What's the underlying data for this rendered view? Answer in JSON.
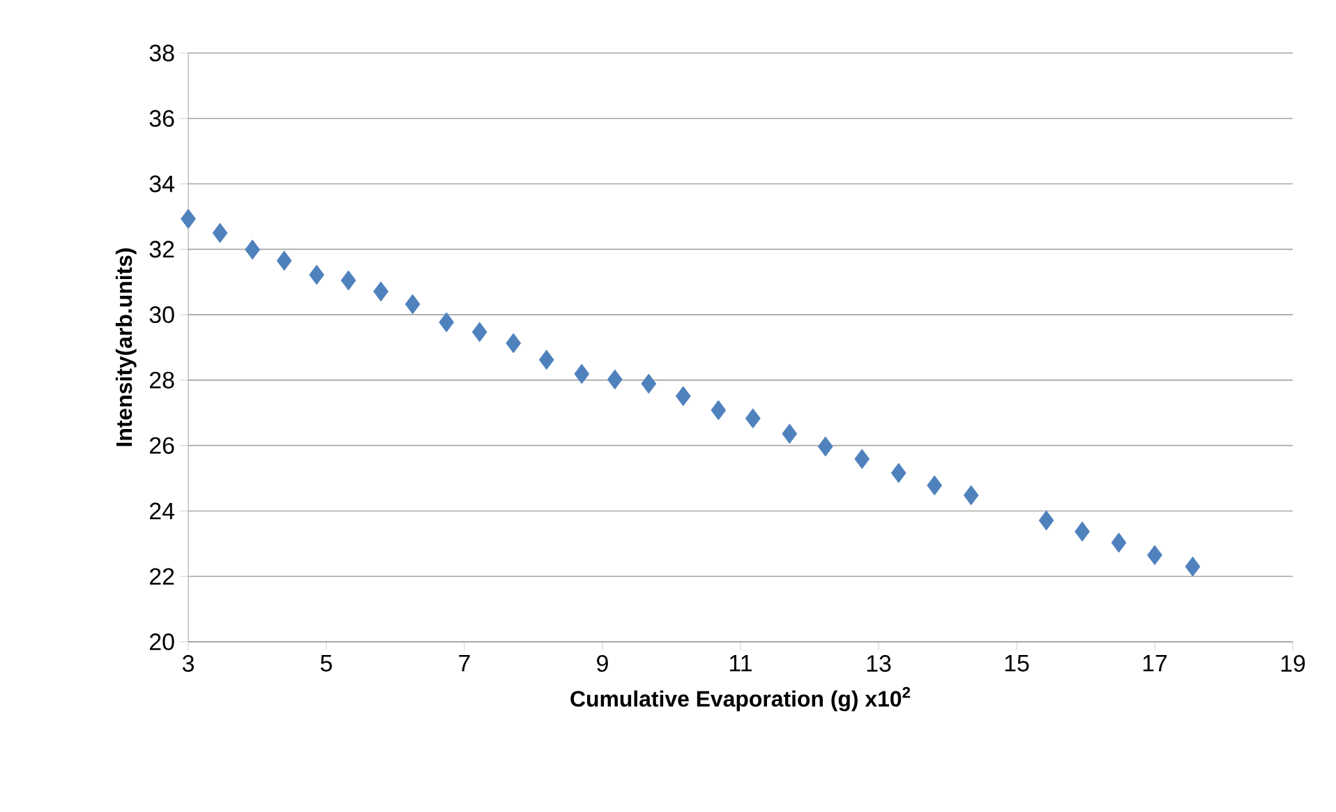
{
  "chart_data": {
    "type": "scatter",
    "xlabel": "Cumulative Evaporation  (g) x10$^{2}$",
    "ylabel": "Intensity(arb.units)",
    "x": [
      3,
      3.46,
      3.93,
      4.39,
      4.86,
      5.32,
      5.79,
      6.25,
      6.74,
      7.22,
      7.71,
      8.19,
      8.7,
      9.18,
      9.67,
      10.17,
      10.68,
      11.18,
      11.71,
      12.23,
      12.76,
      13.29,
      13.81,
      14.34,
      15.43,
      15.95,
      16.48,
      17.0,
      17.55
    ],
    "values": [
      32.93,
      32.5,
      31.99,
      31.65,
      31.22,
      31.05,
      30.71,
      30.32,
      29.77,
      29.47,
      29.13,
      28.62,
      28.19,
      28.02,
      27.89,
      27.51,
      27.08,
      26.83,
      26.36,
      25.97,
      25.59,
      25.16,
      24.78,
      24.48,
      23.71,
      23.37,
      23.03,
      22.65,
      22.3
    ],
    "color": "#4f81bd",
    "marker": "diamond",
    "grid": "y",
    "xlim": [
      3,
      19
    ],
    "ylim": [
      20,
      38
    ],
    "xticks": [
      3,
      5,
      7,
      9,
      11,
      13,
      15,
      17,
      19
    ],
    "yticks": [
      20,
      22,
      24,
      26,
      28,
      30,
      32,
      34,
      36,
      38
    ]
  }
}
